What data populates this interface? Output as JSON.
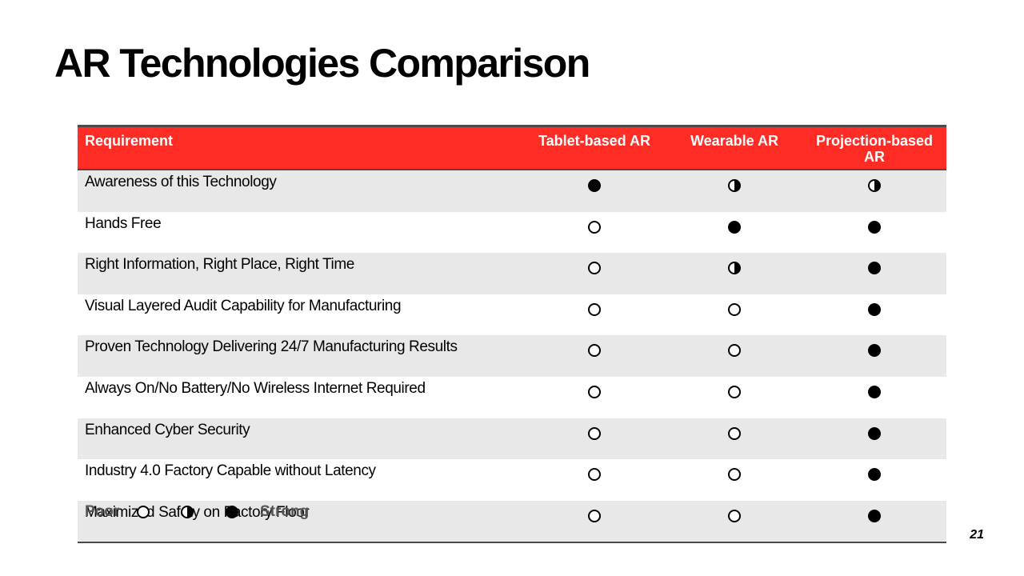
{
  "slide": {
    "title": "AR Technologies Comparison",
    "page_number": "21"
  },
  "table": {
    "headers": [
      "Requirement",
      "Tablet-based AR",
      "Wearable AR",
      "Projection-based AR"
    ],
    "rows": [
      {
        "requirement": "Awareness of this Technology",
        "ratings": [
          "full",
          "half",
          "half"
        ]
      },
      {
        "requirement": "Hands Free",
        "ratings": [
          "empty",
          "full",
          "full"
        ]
      },
      {
        "requirement": "Right Information, Right Place, Right Time",
        "ratings": [
          "empty",
          "half",
          "full"
        ]
      },
      {
        "requirement": "Visual Layered Audit Capability for Manufacturing",
        "ratings": [
          "empty",
          "empty",
          "full"
        ]
      },
      {
        "requirement": "Proven Technology Delivering 24/7 Manufacturing Results",
        "ratings": [
          "empty",
          "empty",
          "full"
        ]
      },
      {
        "requirement": "Always On/No Battery/No Wireless Internet Required",
        "ratings": [
          "empty",
          "empty",
          "full"
        ]
      },
      {
        "requirement": "Enhanced Cyber Security",
        "ratings": [
          "empty",
          "empty",
          "full"
        ]
      },
      {
        "requirement": "Industry 4.0 Factory Capable without Latency",
        "ratings": [
          "empty",
          "empty",
          "full"
        ]
      },
      {
        "requirement": "Maximized Safety on Factory Floor",
        "ratings": [
          "empty",
          "empty",
          "full"
        ]
      }
    ]
  },
  "legend": {
    "poor_label": "Poor",
    "strong_label": "Strong",
    "symbols": [
      "empty",
      "half",
      "full"
    ]
  },
  "colors": {
    "header_background": "#ff2d25",
    "header_text": "#ffffff",
    "row_stripe": "#e8e8e8",
    "rule": "#4a4a4a",
    "legend_text": "#555555"
  }
}
